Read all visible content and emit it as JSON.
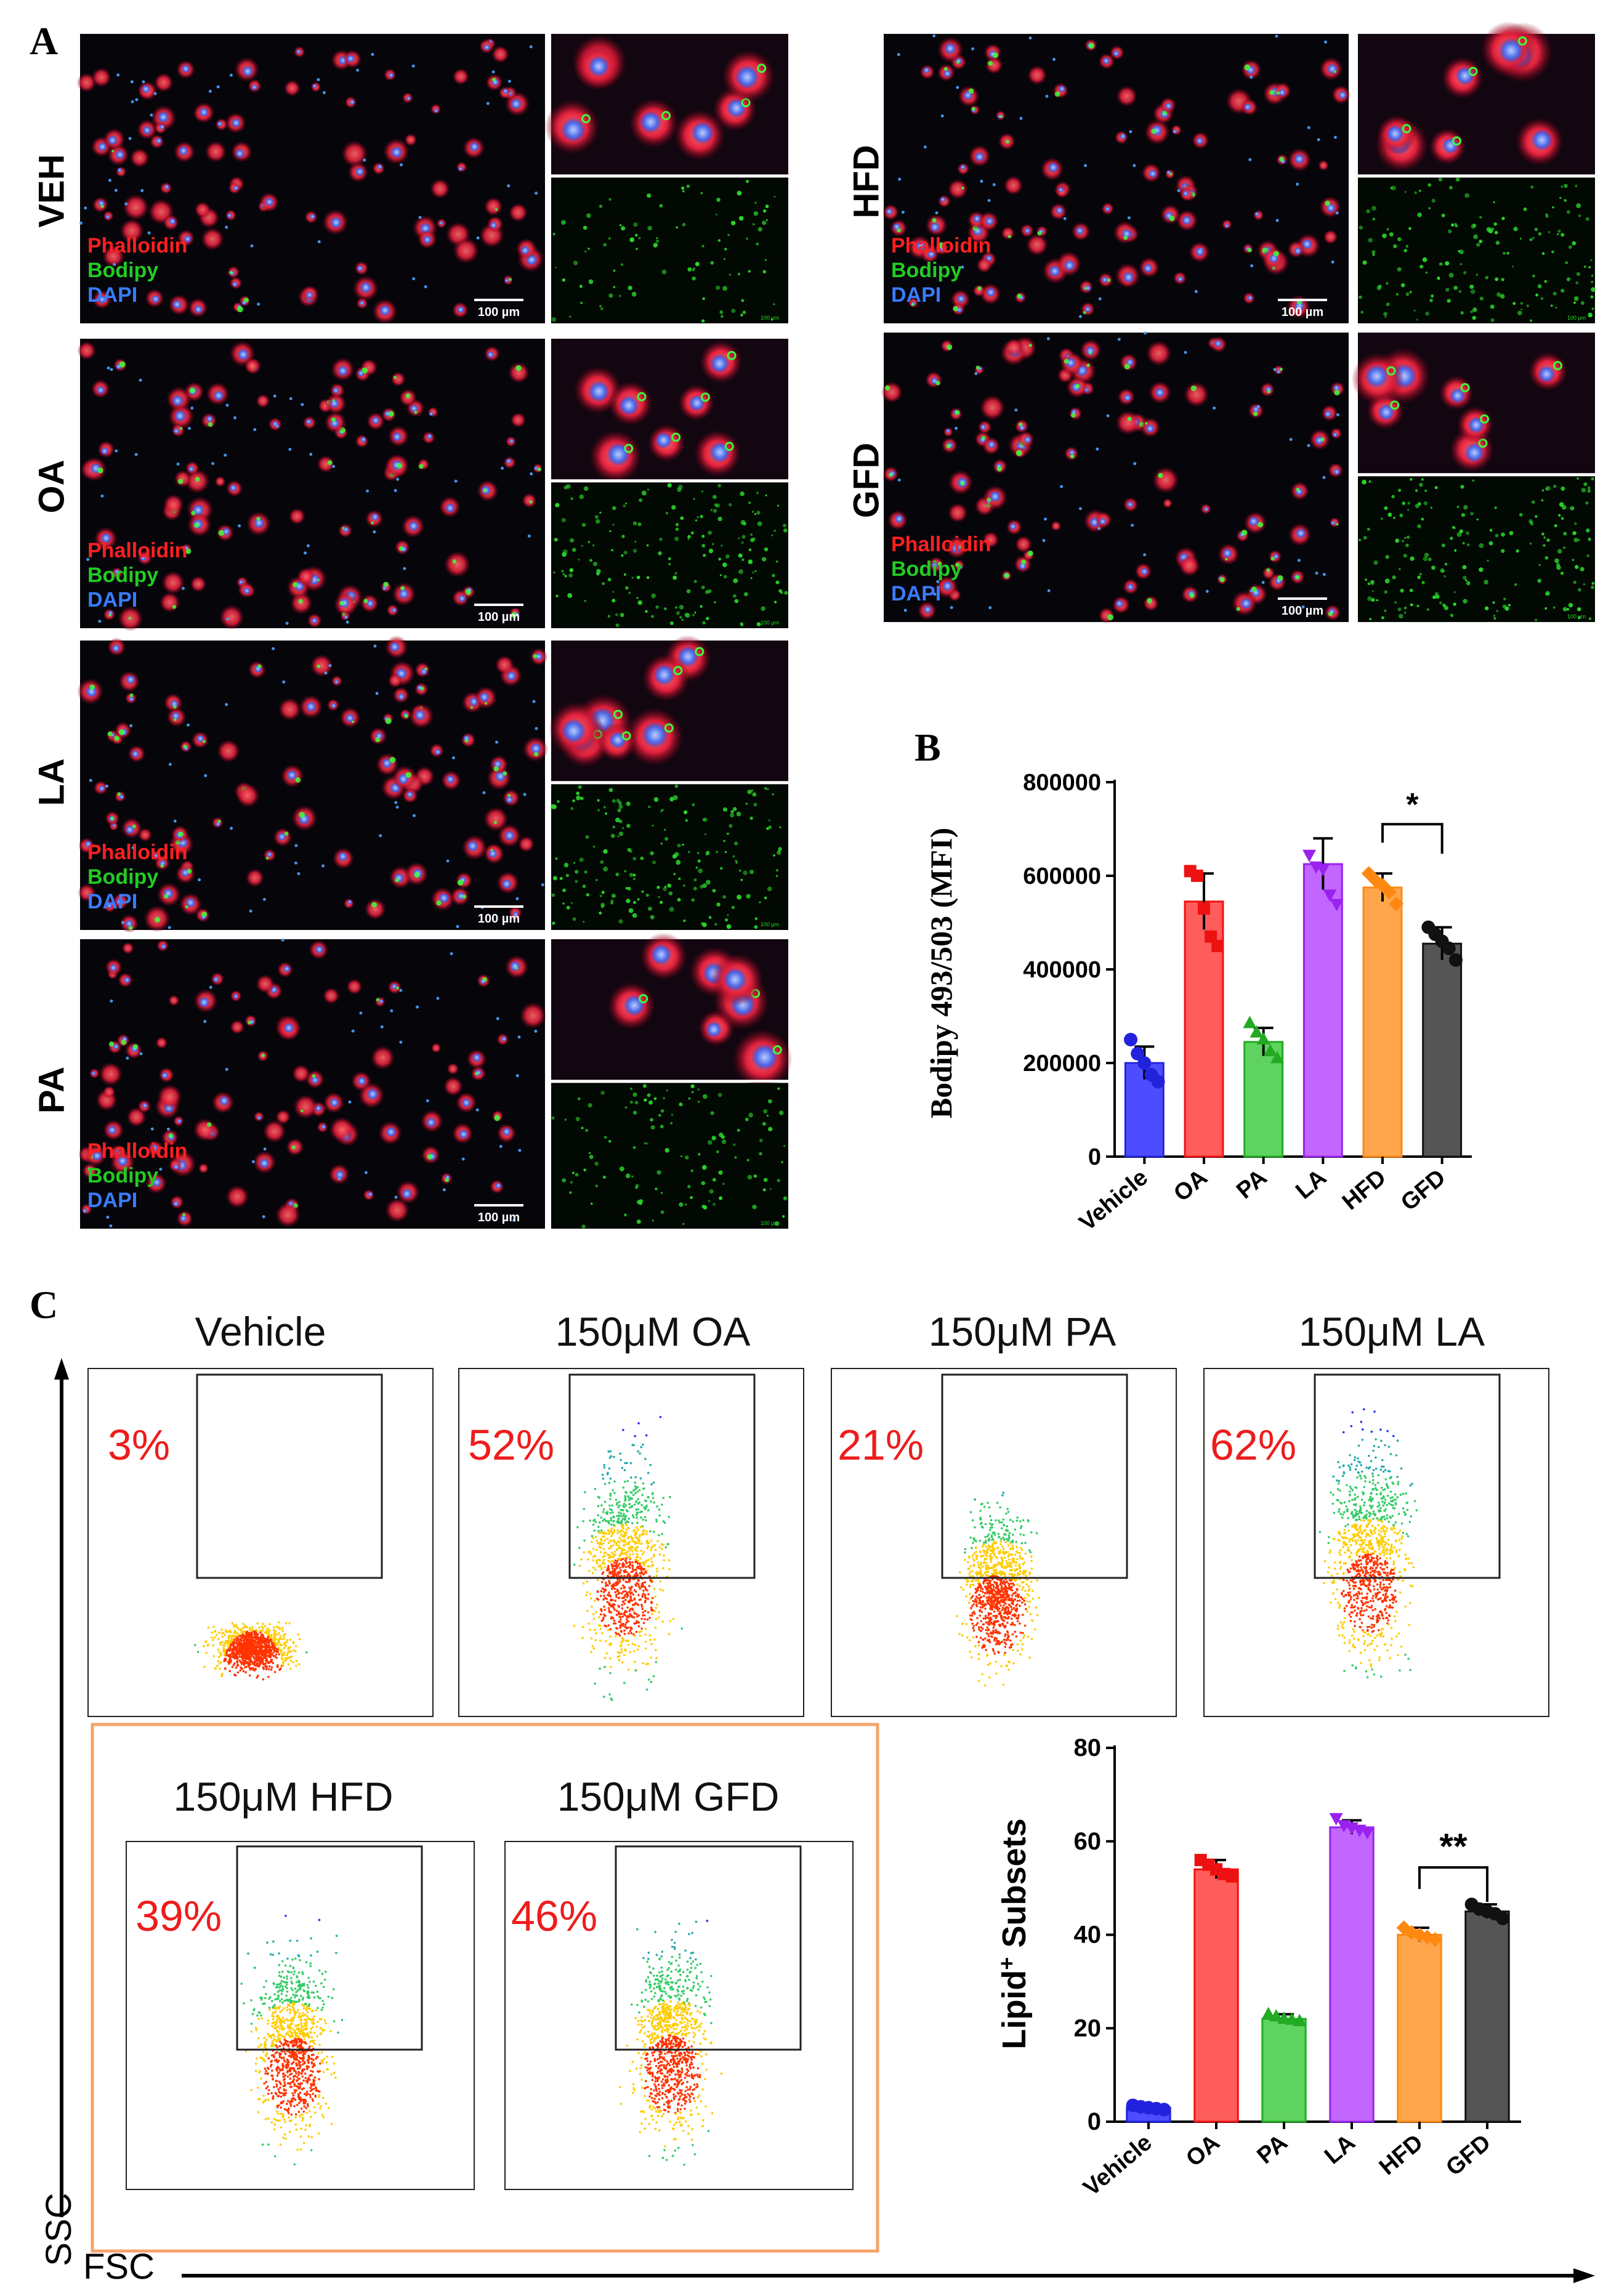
{
  "panel_labels": {
    "a": "A",
    "b": "B",
    "c": "C"
  },
  "microscopy": {
    "stain_labels": {
      "phalloidin": "Phalloidin",
      "bodipy": "Bodipy",
      "dapi": "DAPI"
    },
    "scale_bar": "100 µm",
    "scale_bar_small": "100 µm",
    "samples": [
      {
        "key": "VEH",
        "label": "VEH",
        "lipid_density": 0.15
      },
      {
        "key": "OA",
        "label": "OA",
        "lipid_density": 0.55
      },
      {
        "key": "LA",
        "label": "LA",
        "lipid_density": 0.6
      },
      {
        "key": "PA",
        "label": "PA",
        "lipid_density": 0.3
      },
      {
        "key": "HFD",
        "label": "HFD",
        "lipid_density": 0.45
      },
      {
        "key": "GFD",
        "label": "GFD",
        "lipid_density": 0.6
      }
    ]
  },
  "colors": {
    "Vehicle": "#4d4dff",
    "OA": "#ff5c5c",
    "PA": "#5fd35f",
    "LA": "#c266ff",
    "HFD": "#ffa64d",
    "GFD": "#555555",
    "Vehicle_dot": "#2222dd",
    "OA_dot": "#ee1111",
    "PA_dot": "#22aa22",
    "LA_dot": "#9922ee",
    "HFD_dot": "#ff8811",
    "GFD_dot": "#111111",
    "highlight_box": "#f4a46a",
    "percent_text": "#ee1c1c"
  },
  "flow": {
    "axis_y": "SSC",
    "axis_x": "FSC",
    "plots": [
      {
        "key": "vehicle",
        "title": "Vehicle",
        "percent": "3%",
        "spread": 0.2
      },
      {
        "key": "oa",
        "title": "150μM OA",
        "percent": "52%",
        "spread": 0.85
      },
      {
        "key": "pa",
        "title": "150μM PA",
        "percent": "21%",
        "spread": 0.5
      },
      {
        "key": "la",
        "title": "150μM LA",
        "percent": "62%",
        "spread": 0.95
      },
      {
        "key": "hfd",
        "title": "150μM HFD",
        "percent": "39%",
        "spread": 0.7
      },
      {
        "key": "gfd",
        "title": "150μM GFD",
        "percent": "46%",
        "spread": 0.75
      }
    ]
  },
  "chart_data": [
    {
      "type": "bar",
      "id": "B",
      "categories": [
        "Vehicle",
        "OA",
        "PA",
        "LA",
        "HFD",
        "GFD"
      ],
      "values": [
        200000,
        545000,
        245000,
        625000,
        575000,
        455000
      ],
      "errors": [
        35000,
        60000,
        30000,
        55000,
        30000,
        35000
      ],
      "points": [
        [
          250000,
          220000,
          200000,
          175000,
          160000
        ],
        [
          610000,
          600000,
          530000,
          470000,
          450000
        ],
        [
          285000,
          265000,
          250000,
          225000,
          210000
        ],
        [
          645000,
          620000,
          615000,
          560000,
          540000
        ],
        [
          605000,
          590000,
          580000,
          565000,
          540000
        ],
        [
          490000,
          475000,
          460000,
          445000,
          420000
        ]
      ],
      "ylabel": "Bodipy 493/503 (MFI)",
      "ylim": [
        0,
        800000
      ],
      "yticks": [
        "0",
        "200000",
        "400000",
        "600000",
        "800000"
      ],
      "ytick_values": [
        0,
        200000,
        400000,
        600000,
        800000
      ],
      "significance": {
        "between": [
          "HFD",
          "GFD"
        ],
        "label": "*"
      }
    },
    {
      "type": "bar",
      "id": "C",
      "categories": [
        "Vehicle",
        "OA",
        "PA",
        "LA",
        "HFD",
        "GFD"
      ],
      "values": [
        3,
        54,
        22,
        63,
        40,
        45
      ],
      "errors": [
        0.5,
        2,
        1,
        1.5,
        1.5,
        1.5
      ],
      "points": [
        [
          3.5,
          3.2,
          3,
          2.8,
          2.6
        ],
        [
          56,
          55,
          54,
          53,
          52.5
        ],
        [
          23,
          22.5,
          22,
          21.8,
          21.5
        ],
        [
          65,
          63.5,
          63,
          62.5,
          62
        ],
        [
          41.5,
          40.5,
          40,
          39.5,
          39
        ],
        [
          46.5,
          45.5,
          45,
          44.5,
          43.5
        ]
      ],
      "ylabel_main": "Lipid",
      "ylabel_sup": "+",
      "ylabel_rest": " Subsets",
      "ylim": [
        0,
        80
      ],
      "yticks": [
        "0",
        "20",
        "40",
        "60",
        "80"
      ],
      "ytick_values": [
        0,
        20,
        40,
        60,
        80
      ],
      "significance": {
        "between": [
          "HFD",
          "GFD"
        ],
        "label": "**"
      }
    }
  ]
}
